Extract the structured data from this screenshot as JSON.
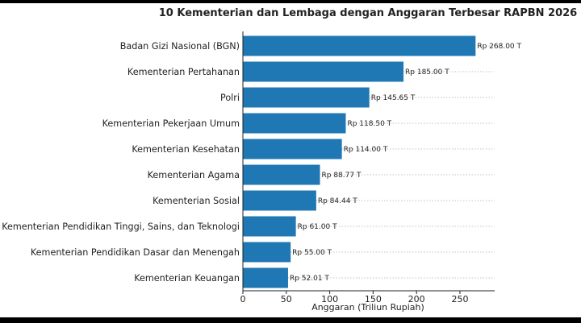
{
  "chart_data": {
    "type": "bar",
    "orientation": "horizontal",
    "title": "10 Kementerian dan Lembaga dengan Anggaran Terbesar RAPBN 2026",
    "xlabel": "Anggaran (Triliun Rupiah)",
    "ylabel": "",
    "xlim": [
      0,
      290
    ],
    "xticks": [
      0,
      50,
      100,
      150,
      200,
      250
    ],
    "grid": "x-dotted",
    "bar_color": "#1f77b4",
    "categories": [
      "Badan Gizi Nasional (BGN)",
      "Kementerian Pertahanan",
      "Polri",
      "Kementerian Pekerjaan Umum",
      "Kementerian Kesehatan",
      "Kementerian Agama",
      "Kementerian Sosial",
      "Kementerian Pendidikan Tinggi, Sains, dan Teknologi",
      "Kementerian Pendidikan Dasar dan Menengah",
      "Kementerian Keuangan"
    ],
    "values": [
      268.0,
      185.0,
      145.65,
      118.5,
      114.0,
      88.77,
      84.44,
      61.0,
      55.0,
      52.01
    ],
    "data_labels": [
      "Rp 268.00 T",
      "Rp 185.00 T",
      "Rp 145.65 T",
      "Rp 118.50 T",
      "Rp 114.00 T",
      "Rp 88.77 T",
      "Rp 84.44 T",
      "Rp 61.00 T",
      "Rp 55.00 T",
      "Rp 52.01 T"
    ]
  }
}
